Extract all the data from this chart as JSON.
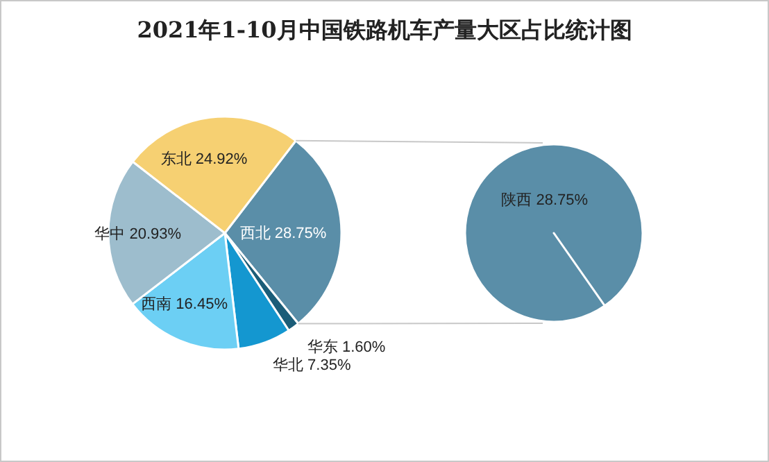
{
  "chart_data": [
    {
      "type": "pie",
      "title": "2021年1-10月中国铁路机车产量大区占比统计图",
      "categories": [
        "西北",
        "华东",
        "华北",
        "西南",
        "华中",
        "东北"
      ],
      "values": [
        28.75,
        1.6,
        7.35,
        16.45,
        20.93,
        24.92
      ],
      "value_labels": [
        "28.75%",
        "1.60%",
        "7.35%",
        "16.45%",
        "20.93%",
        "24.92%"
      ],
      "colors": [
        "#5a8ea8",
        "#1b5d78",
        "#1497d0",
        "#6ccff4",
        "#9dbdcd",
        "#f6d072"
      ]
    },
    {
      "type": "pie",
      "categories": [
        "陕西"
      ],
      "values": [
        28.75
      ],
      "value_labels": [
        "28.75%"
      ],
      "colors": [
        "#5a8ea8"
      ]
    }
  ]
}
